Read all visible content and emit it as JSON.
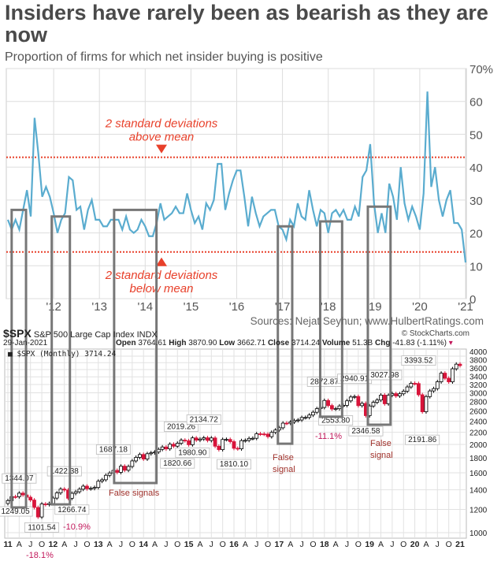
{
  "header": {
    "title": "Insiders have rarely been as bearish as they are now",
    "subtitle": "Proportion of firms for which net insider buying is positive",
    "source": "Sources: Nejat Seyhun; www.HulbertRatings.com"
  },
  "chart_data": [
    {
      "type": "line",
      "title": "Insiders have rarely been as bearish as they are now",
      "subtitle": "Proportion of firms for which net insider buying is positive",
      "x_start": "2011-01",
      "x_frequency": "monthly",
      "x_tick_labels": [
        "'12",
        "'13",
        "'14",
        "'15",
        "'16",
        "'17",
        "'18",
        "'19",
        "'20",
        "'21"
      ],
      "y_tick_labels": [
        "0",
        "10",
        "20",
        "30",
        "40",
        "50",
        "60",
        "70%"
      ],
      "ylim": [
        0,
        70
      ],
      "grid": true,
      "line_color": "#5aaccf",
      "values": [
        24,
        21,
        24,
        21,
        27,
        33,
        25,
        55,
        44,
        31,
        34,
        31,
        26,
        20,
        24,
        26,
        37,
        36,
        27,
        28,
        21,
        27,
        30,
        24,
        24,
        22,
        22,
        24,
        24,
        24,
        21,
        25,
        21,
        20,
        21,
        24,
        22,
        19,
        19,
        23,
        29,
        24,
        25,
        26,
        28,
        26,
        26,
        32,
        27,
        23,
        25,
        21,
        29,
        27,
        30,
        41,
        41,
        27,
        32,
        36,
        39,
        39,
        31,
        22,
        31,
        26,
        22,
        25,
        26,
        27,
        27,
        22,
        21,
        18,
        24,
        22,
        29,
        25,
        24,
        33,
        27,
        22,
        27,
        26,
        20,
        26,
        27,
        25,
        27,
        24,
        24,
        28,
        25,
        37,
        39,
        47,
        29,
        20,
        26,
        20,
        35,
        31,
        24,
        40,
        29,
        24,
        28,
        25,
        21,
        32,
        63,
        34,
        40,
        30,
        25,
        30,
        33,
        23,
        23,
        21,
        11
      ],
      "thresholds": [
        {
          "value": 43,
          "label": [
            "2 standard deviations",
            "above mean"
          ],
          "color": "#e8402a"
        },
        {
          "value": 14.2,
          "label": [
            "2 standard deviations",
            "below mean"
          ],
          "color": "#e8402a"
        }
      ]
    },
    {
      "type": "candlestick",
      "symbol": "$SPX",
      "name": "S&P 500 Large Cap Index",
      "exchange": "INDX",
      "credit": "© StockCharts.com",
      "date": "29-Jan-2021",
      "quote": {
        "open": "3764.61",
        "high": "3870.90",
        "low": "3662.71",
        "close": "3714.24",
        "volume": "51.3B",
        "chg": "-41.83 (-1.11%)"
      },
      "quote_labels": {
        "open": "Open",
        "high": "High",
        "low": "Low",
        "close": "Close",
        "volume": "Volume",
        "chg": "Chg"
      },
      "legend": "$SPX (Monthly) 3714.24",
      "y_scale": "log",
      "y_tick_labels": [
        "1000",
        "1200",
        "1400",
        "1600",
        "1800",
        "2000",
        "2200",
        "2400",
        "2600",
        "2800",
        "3000",
        "3200",
        "3400",
        "3600",
        "3800",
        "4000"
      ],
      "x_tick_labels": [
        "11",
        "A",
        "J",
        "O",
        "12",
        "A",
        "J",
        "O",
        "13",
        "A",
        "J",
        "O",
        "14",
        "A",
        "J",
        "O",
        "15",
        "A",
        "J",
        "O",
        "16",
        "A",
        "J",
        "O",
        "17",
        "A",
        "J",
        "O",
        "18",
        "A",
        "J",
        "O",
        "19",
        "A",
        "J",
        "O",
        "20",
        "A",
        "J",
        "O",
        "21"
      ],
      "up_color": "#000000",
      "down_color": "#d8143a",
      "x_start": "2011-01",
      "first_open": 1257.64,
      "closes": [
        1286,
        1327,
        1326,
        1364,
        1345,
        1321,
        1292,
        1219,
        1131,
        1253,
        1247,
        1258,
        1312,
        1366,
        1408,
        1398,
        1310,
        1362,
        1379,
        1407,
        1441,
        1412,
        1416,
        1426,
        1498,
        1515,
        1569,
        1598,
        1631,
        1606,
        1686,
        1633,
        1682,
        1757,
        1806,
        1848,
        1783,
        1859,
        1872,
        1884,
        1924,
        1960,
        1931,
        2003,
        1972,
        2018,
        2068,
        2059,
        1995,
        2105,
        2068,
        2086,
        2107,
        2063,
        2104,
        1972,
        1920,
        2079,
        2080,
        2044,
        1940,
        1932,
        2060,
        2065,
        2097,
        2099,
        2174,
        2171,
        2168,
        2126,
        2199,
        2239,
        2279,
        2364,
        2363,
        2384,
        2412,
        2423,
        2470,
        2472,
        2519,
        2575,
        2648,
        2674,
        2824,
        2714,
        2641,
        2648,
        2705,
        2718,
        2816,
        2902,
        2914,
        2712,
        2760,
        2507,
        2704,
        2784,
        2834,
        2946,
        2752,
        2942,
        2980,
        2926,
        2977,
        3038,
        3141,
        3231,
        3226,
        2954,
        2585,
        2912,
        3044,
        3100,
        3271,
        3500,
        3363,
        3270,
        3622,
        3756,
        3714
      ],
      "annotations": [
        {
          "text": "1344.07",
          "month": 3,
          "side": "above"
        },
        {
          "text": "1249.05",
          "month": 2,
          "side": "below"
        },
        {
          "text": "1101.54",
          "month": 9,
          "side": "below"
        },
        {
          "text": "1422.38",
          "month": 15,
          "side": "above"
        },
        {
          "text": "1266.74",
          "month": 17,
          "side": "below"
        },
        {
          "text": "1687.18",
          "month": 28,
          "side": "above"
        },
        {
          "text": "2019.26",
          "month": 46,
          "side": "above"
        },
        {
          "text": "1820.66",
          "month": 45,
          "side": "below"
        },
        {
          "text": "1980.90",
          "month": 49,
          "side": "below"
        },
        {
          "text": "2134.72",
          "month": 52,
          "side": "above"
        },
        {
          "text": "1810.10",
          "month": 60,
          "side": "below"
        },
        {
          "text": "2872.87",
          "month": 84,
          "side": "above"
        },
        {
          "text": "2553.80",
          "month": 87,
          "side": "below"
        },
        {
          "text": "2940.91",
          "month": 92,
          "side": "above"
        },
        {
          "text": "3027.98",
          "month": 100,
          "side": "above"
        },
        {
          "text": "2346.58",
          "month": 95,
          "side": "below"
        },
        {
          "text": "3393.52",
          "month": 109,
          "side": "above"
        },
        {
          "text": "2191.86",
          "month": 110,
          "side": "below"
        }
      ],
      "drawdowns": [
        "-18.1%",
        "-10.9%",
        "-11.1%"
      ],
      "signal_notes": [
        "False signals",
        "False",
        "signal",
        "False",
        "signal"
      ]
    }
  ],
  "signal_periods": [
    {
      "start_month": 1,
      "end_month": 4.8,
      "insider_top": 27,
      "spx_bottom": 1219
    },
    {
      "start_month": 11.6,
      "end_month": 16.4,
      "insider_top": 25,
      "spx_bottom": 1249
    },
    {
      "start_month": 28.1,
      "end_month": 39.3,
      "insider_top": 27,
      "spx_bottom": 1477
    },
    {
      "start_month": 71.4,
      "end_month": 75.2,
      "insider_top": 22,
      "spx_bottom": 2011
    },
    {
      "start_month": 82.6,
      "end_month": 88.4,
      "insider_top": 23.5,
      "spx_bottom": 2483
    },
    {
      "start_month": 95.2,
      "end_month": 101.2,
      "insider_top": 28,
      "spx_bottom": 2334
    }
  ]
}
